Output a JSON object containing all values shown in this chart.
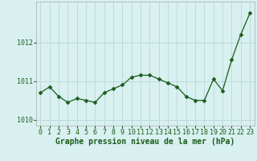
{
  "x": [
    0,
    1,
    2,
    3,
    4,
    5,
    6,
    7,
    8,
    9,
    10,
    11,
    12,
    13,
    14,
    15,
    16,
    17,
    18,
    19,
    20,
    21,
    22,
    23
  ],
  "y": [
    1010.7,
    1010.85,
    1010.6,
    1010.45,
    1010.55,
    1010.5,
    1010.45,
    1010.7,
    1010.8,
    1010.9,
    1011.1,
    1011.15,
    1011.15,
    1011.05,
    1010.95,
    1010.85,
    1010.6,
    1010.5,
    1010.5,
    1011.05,
    1010.75,
    1011.55,
    1012.2,
    1012.75
  ],
  "line_color": "#1a5c1a",
  "marker_size": 2.5,
  "bg_color": "#d8f0f0",
  "grid_color": "#b8d8d8",
  "xlabel": "Graphe pression niveau de la mer (hPa)",
  "xlabel_color": "#1a5c1a",
  "xlabel_fontsize": 7,
  "tick_color": "#1a5c1a",
  "tick_fontsize": 6,
  "ylim": [
    1009.85,
    1013.05
  ],
  "yticks": [
    1010,
    1011,
    1012
  ],
  "xlim": [
    -0.5,
    23.5
  ],
  "xticks": [
    0,
    1,
    2,
    3,
    4,
    5,
    6,
    7,
    8,
    9,
    10,
    11,
    12,
    13,
    14,
    15,
    16,
    17,
    18,
    19,
    20,
    21,
    22,
    23
  ]
}
